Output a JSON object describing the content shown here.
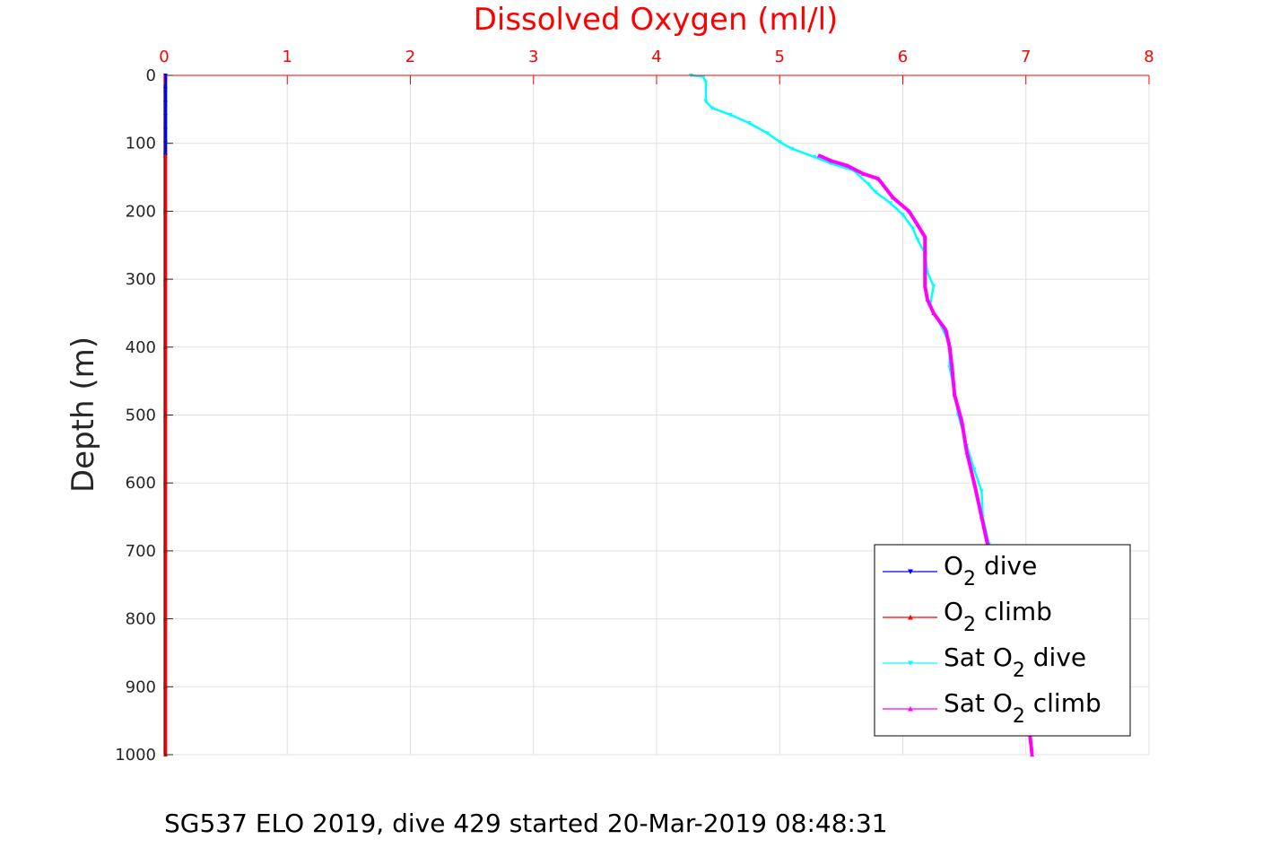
{
  "chart_data": {
    "type": "line",
    "title": "",
    "xlabel": "Dissolved Oxygen (ml/l)",
    "ylabel": "Depth (m)",
    "xlim": [
      0,
      8
    ],
    "ylim": [
      0,
      1000
    ],
    "y_reversed": true,
    "x_axis_location": "top",
    "x_ticks": [
      "0",
      "1",
      "2",
      "3",
      "4",
      "5",
      "6",
      "7",
      "8"
    ],
    "y_ticks": [
      "0",
      "100",
      "200",
      "300",
      "400",
      "500",
      "600",
      "700",
      "800",
      "900",
      "1000"
    ],
    "grid": true,
    "legend_position": "bottom-right",
    "caption": "SG537 ELO 2019, dive 429 started 20-Mar-2019 08:48:31",
    "colors": {
      "axis_x": "#ff0000",
      "axis_y": "#262626",
      "grid": "#e0e0e0"
    },
    "series": [
      {
        "legend_main": "O",
        "legend_sub": "2",
        "legend_suffix": " dive",
        "legend_prefix": "",
        "color": "#0000ff",
        "marker": "triangle-down",
        "points": [
          [
            0.01,
            0
          ],
          [
            0.01,
            20
          ],
          [
            0.01,
            40
          ],
          [
            0.01,
            60
          ],
          [
            0.01,
            80
          ],
          [
            0.01,
            100
          ],
          [
            0.01,
            118
          ]
        ]
      },
      {
        "legend_main": "O",
        "legend_sub": "2",
        "legend_suffix": " climb",
        "legend_prefix": "",
        "color": "#ff0000",
        "marker": "triangle-up",
        "points": [
          [
            0.01,
            118
          ],
          [
            0.01,
            200
          ],
          [
            0.01,
            300
          ],
          [
            0.01,
            400
          ],
          [
            0.01,
            500
          ],
          [
            0.01,
            600
          ],
          [
            0.01,
            700
          ],
          [
            0.01,
            800
          ],
          [
            0.01,
            900
          ],
          [
            0.01,
            1000
          ]
        ]
      },
      {
        "legend_main": "O",
        "legend_sub": "2",
        "legend_suffix": " dive",
        "legend_prefix": "Sat ",
        "color": "#00ffff",
        "marker": "triangle-down",
        "points": [
          [
            4.28,
            0
          ],
          [
            4.38,
            2
          ],
          [
            4.4,
            10
          ],
          [
            4.4,
            38
          ],
          [
            4.45,
            48
          ],
          [
            4.6,
            58
          ],
          [
            4.75,
            70
          ],
          [
            4.9,
            85
          ],
          [
            5.0,
            98
          ],
          [
            5.1,
            108
          ],
          [
            5.28,
            120
          ],
          [
            5.42,
            130
          ],
          [
            5.6,
            140
          ],
          [
            5.72,
            160
          ],
          [
            5.78,
            172
          ],
          [
            5.9,
            188
          ],
          [
            6.0,
            205
          ],
          [
            6.08,
            225
          ],
          [
            6.12,
            242
          ],
          [
            6.18,
            262
          ],
          [
            6.2,
            290
          ],
          [
            6.25,
            310
          ],
          [
            6.22,
            340
          ],
          [
            6.3,
            365
          ],
          [
            6.38,
            395
          ],
          [
            6.38,
            430
          ],
          [
            6.42,
            465
          ],
          [
            6.45,
            500
          ],
          [
            6.52,
            545
          ],
          [
            6.58,
            580
          ],
          [
            6.64,
            612
          ],
          [
            6.65,
            650
          ],
          [
            6.7,
            690
          ]
        ]
      },
      {
        "legend_main": "O",
        "legend_sub": "2",
        "legend_suffix": " climb",
        "legend_prefix": "Sat ",
        "color": "#ff00ff",
        "marker": "triangle-up",
        "points": [
          [
            5.32,
            118
          ],
          [
            5.42,
            126
          ],
          [
            5.55,
            133
          ],
          [
            5.68,
            145
          ],
          [
            5.8,
            152
          ],
          [
            5.92,
            180
          ],
          [
            6.05,
            200
          ],
          [
            6.12,
            220
          ],
          [
            6.18,
            238
          ],
          [
            6.18,
            260
          ],
          [
            6.18,
            290
          ],
          [
            6.18,
            310
          ],
          [
            6.2,
            330
          ],
          [
            6.25,
            350
          ],
          [
            6.35,
            375
          ],
          [
            6.38,
            400
          ],
          [
            6.4,
            430
          ],
          [
            6.42,
            470
          ],
          [
            6.48,
            510
          ],
          [
            6.52,
            555
          ],
          [
            6.58,
            600
          ],
          [
            6.64,
            650
          ],
          [
            6.7,
            700
          ],
          [
            6.78,
            750
          ],
          [
            6.85,
            800
          ],
          [
            6.92,
            850
          ],
          [
            6.98,
            900
          ],
          [
            7.02,
            950
          ],
          [
            7.05,
            1000
          ]
        ]
      }
    ]
  }
}
